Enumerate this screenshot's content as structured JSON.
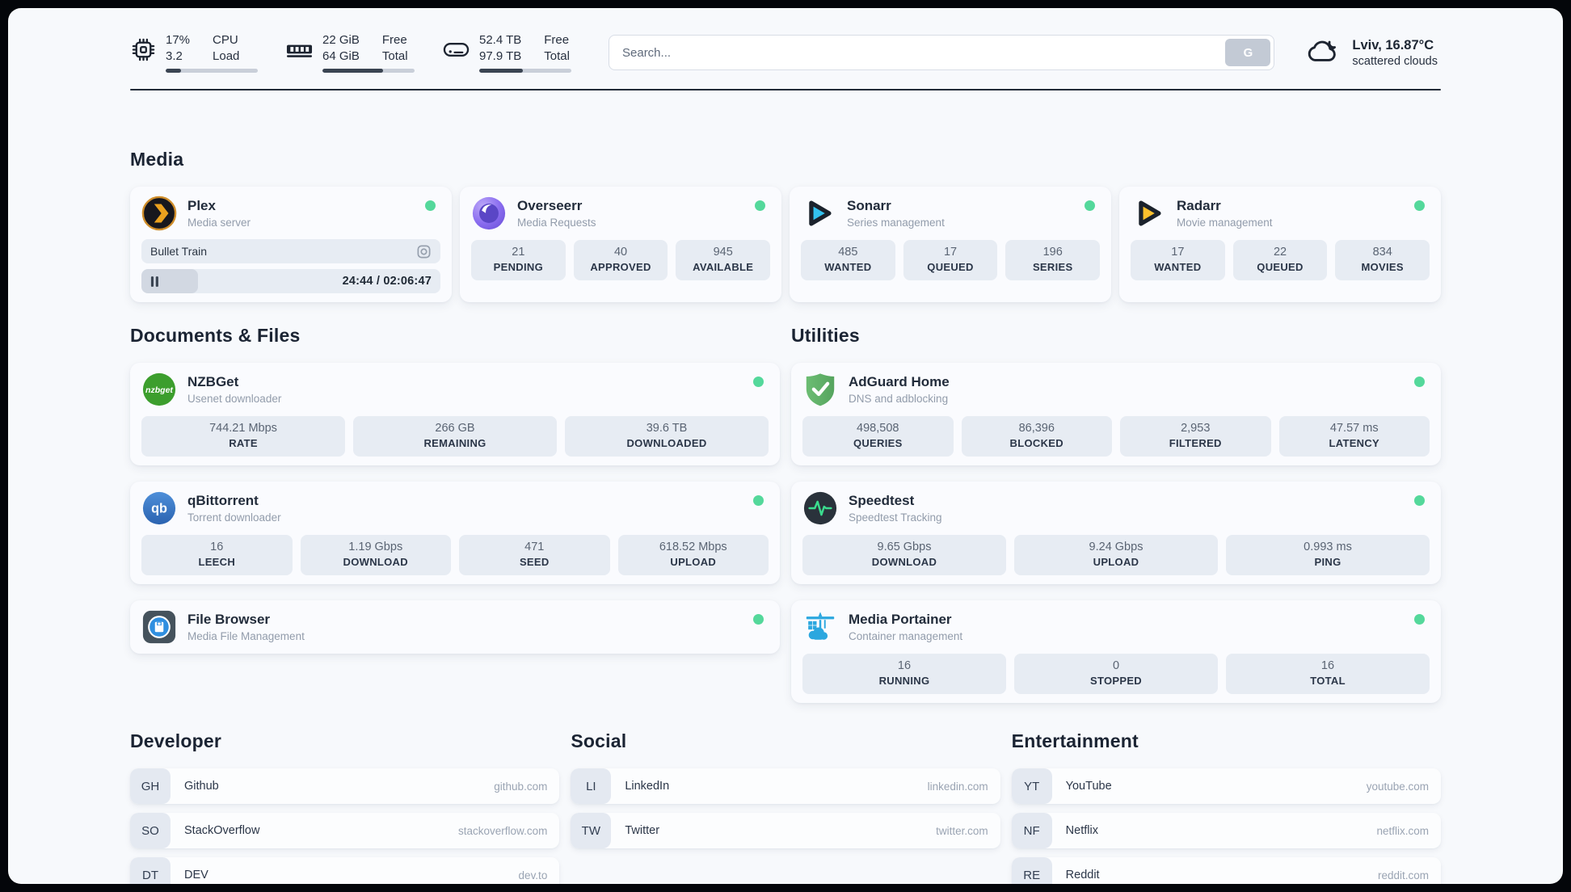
{
  "topbar": {
    "cpu": {
      "icon": "cpu-icon",
      "value1": "17%",
      "value2": "3.2",
      "label1": "CPU",
      "label2": "Load",
      "progress_pct": 17
    },
    "memory": {
      "icon": "ram-icon",
      "value1": "22 GiB",
      "value2": "64 GiB",
      "label1": "Free",
      "label2": "Total",
      "progress_pct": 66
    },
    "disk": {
      "icon": "disk-icon",
      "value1": "52.4 TB",
      "value2": "97.9 TB",
      "label1": "Free",
      "label2": "Total",
      "progress_pct": 47
    },
    "search": {
      "placeholder": "Search...",
      "button_label": "G"
    },
    "weather": {
      "icon": "cloud-icon",
      "location_temp": "Lviv, 16.87°C",
      "condition": "scattered clouds"
    }
  },
  "sections": {
    "media": {
      "title": "Media",
      "apps": [
        {
          "id": "plex",
          "name": "Plex",
          "subtitle": "Media server",
          "icon": "plex-icon",
          "status": "online",
          "now_playing": {
            "title": "Bullet Train",
            "time": "24:44 / 02:06:47",
            "progress_pct": 19
          }
        },
        {
          "id": "overseerr",
          "name": "Overseerr",
          "subtitle": "Media Requests",
          "icon": "overseerr-icon",
          "status": "online",
          "stats": [
            {
              "value": "21",
              "label": "PENDING"
            },
            {
              "value": "40",
              "label": "APPROVED"
            },
            {
              "value": "945",
              "label": "AVAILABLE"
            }
          ]
        },
        {
          "id": "sonarr",
          "name": "Sonarr",
          "subtitle": "Series management",
          "icon": "sonarr-icon",
          "status": "online",
          "stats": [
            {
              "value": "485",
              "label": "WANTED"
            },
            {
              "value": "17",
              "label": "QUEUED"
            },
            {
              "value": "196",
              "label": "SERIES"
            }
          ]
        },
        {
          "id": "radarr",
          "name": "Radarr",
          "subtitle": "Movie management",
          "icon": "radarr-icon",
          "status": "online",
          "stats": [
            {
              "value": "17",
              "label": "WANTED"
            },
            {
              "value": "22",
              "label": "QUEUED"
            },
            {
              "value": "834",
              "label": "MOVIES"
            }
          ]
        }
      ]
    },
    "documents": {
      "title": "Documents & Files",
      "apps": [
        {
          "id": "nzbget",
          "name": "NZBGet",
          "subtitle": "Usenet downloader",
          "icon": "nzbget-icon",
          "status": "online",
          "stats": [
            {
              "value": "744.21 Mbps",
              "label": "RATE"
            },
            {
              "value": "266 GB",
              "label": "REMAINING"
            },
            {
              "value": "39.6 TB",
              "label": "DOWNLOADED"
            }
          ]
        },
        {
          "id": "qbittorrent",
          "name": "qBittorrent",
          "subtitle": "Torrent downloader",
          "icon": "qbittorrent-icon",
          "status": "online",
          "stats": [
            {
              "value": "16",
              "label": "LEECH"
            },
            {
              "value": "1.19 Gbps",
              "label": "DOWNLOAD"
            },
            {
              "value": "471",
              "label": "SEED"
            },
            {
              "value": "618.52 Mbps",
              "label": "UPLOAD"
            }
          ]
        },
        {
          "id": "filebrowser",
          "name": "File Browser",
          "subtitle": "Media File Management",
          "icon": "filebrowser-icon",
          "status": "online",
          "stats": []
        }
      ]
    },
    "utilities": {
      "title": "Utilities",
      "apps": [
        {
          "id": "adguard",
          "name": "AdGuard Home",
          "subtitle": "DNS and adblocking",
          "icon": "adguard-icon",
          "status": "online",
          "stats": [
            {
              "value": "498,508",
              "label": "QUERIES"
            },
            {
              "value": "86,396",
              "label": "BLOCKED"
            },
            {
              "value": "2,953",
              "label": "FILTERED"
            },
            {
              "value": "47.57 ms",
              "label": "LATENCY"
            }
          ]
        },
        {
          "id": "speedtest",
          "name": "Speedtest",
          "subtitle": "Speedtest Tracking",
          "icon": "speedtest-icon",
          "status": "online",
          "stats": [
            {
              "value": "9.65 Gbps",
              "label": "DOWNLOAD"
            },
            {
              "value": "9.24 Gbps",
              "label": "UPLOAD"
            },
            {
              "value": "0.993 ms",
              "label": "PING"
            }
          ]
        },
        {
          "id": "portainer",
          "name": "Media Portainer",
          "subtitle": "Container management",
          "icon": "portainer-icon",
          "status": "online",
          "stats": [
            {
              "value": "16",
              "label": "RUNNING"
            },
            {
              "value": "0",
              "label": "STOPPED"
            },
            {
              "value": "16",
              "label": "TOTAL"
            }
          ]
        }
      ]
    }
  },
  "link_groups": [
    {
      "title": "Developer",
      "links": [
        {
          "abbr": "GH",
          "name": "Github",
          "url": "github.com"
        },
        {
          "abbr": "SO",
          "name": "StackOverflow",
          "url": "stackoverflow.com"
        },
        {
          "abbr": "DT",
          "name": "DEV",
          "url": "dev.to"
        }
      ]
    },
    {
      "title": "Social",
      "links": [
        {
          "abbr": "LI",
          "name": "LinkedIn",
          "url": "linkedin.com"
        },
        {
          "abbr": "TW",
          "name": "Twitter",
          "url": "twitter.com"
        }
      ]
    },
    {
      "title": "Entertainment",
      "links": [
        {
          "abbr": "YT",
          "name": "YouTube",
          "url": "youtube.com"
        },
        {
          "abbr": "NF",
          "name": "Netflix",
          "url": "netflix.com"
        },
        {
          "abbr": "RE",
          "name": "Reddit",
          "url": "reddit.com"
        }
      ]
    }
  ],
  "colors": {
    "status_online": "#54d89b",
    "progress_fill": "#3a4452",
    "stat_tile_bg": "#e7ecf3",
    "heading_text": "#1b2433",
    "plex_accent": "#eba11e",
    "sonarr_accent": "#33c3f0",
    "radarr_accent": "#fec12d",
    "nzbget_accent": "#3c9e2d",
    "qbittorrent_accent": "#2b63b0",
    "adguard_accent": "#5fae67",
    "portainer_accent": "#2ba7df"
  }
}
